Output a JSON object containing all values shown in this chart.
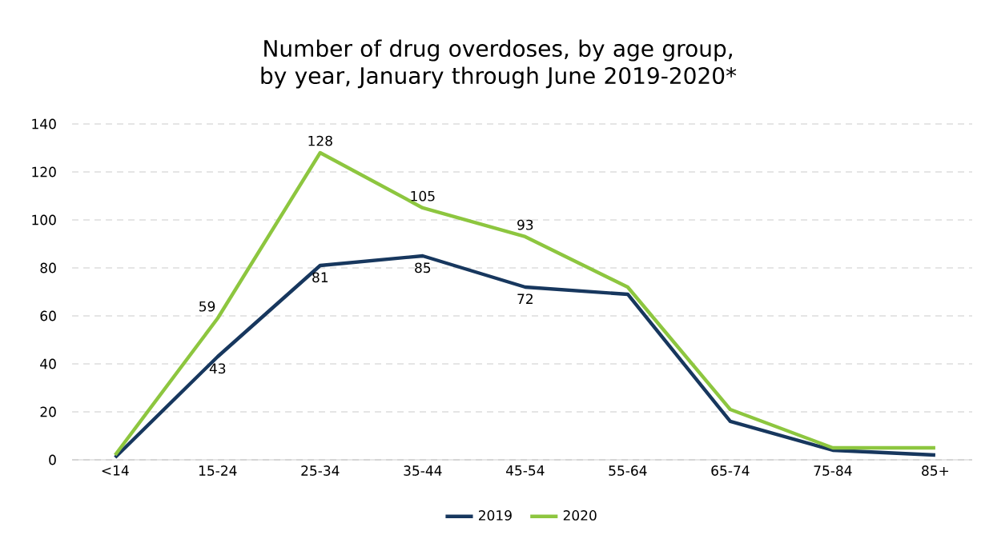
{
  "chart_data": {
    "type": "line",
    "title": "Number of drug overdoses, by age group, by year, January through June 2019-2020*",
    "categories": [
      "<14",
      "15-24",
      "25-34",
      "35-44",
      "45-54",
      "55-64",
      "65-74",
      "75-84",
      "85+"
    ],
    "series": [
      {
        "name": "2019",
        "color": "#17375e",
        "values": [
          1,
          43,
          81,
          85,
          72,
          69,
          16,
          4,
          2
        ],
        "value_labels": [
          null,
          "43",
          "81",
          "85",
          "72",
          null,
          null,
          null,
          null
        ]
      },
      {
        "name": "2020",
        "color": "#8dc63f",
        "values": [
          2,
          59,
          128,
          105,
          93,
          72,
          21,
          5,
          5
        ],
        "value_labels": [
          null,
          "59",
          "128",
          "105",
          "93",
          null,
          null,
          null,
          null
        ]
      }
    ],
    "ylim": [
      0,
      140
    ],
    "yticks": [
      0,
      20,
      40,
      60,
      80,
      100,
      120,
      140
    ],
    "grid": "y",
    "legend": "bottom",
    "marker": "none",
    "line_style": "solid"
  }
}
